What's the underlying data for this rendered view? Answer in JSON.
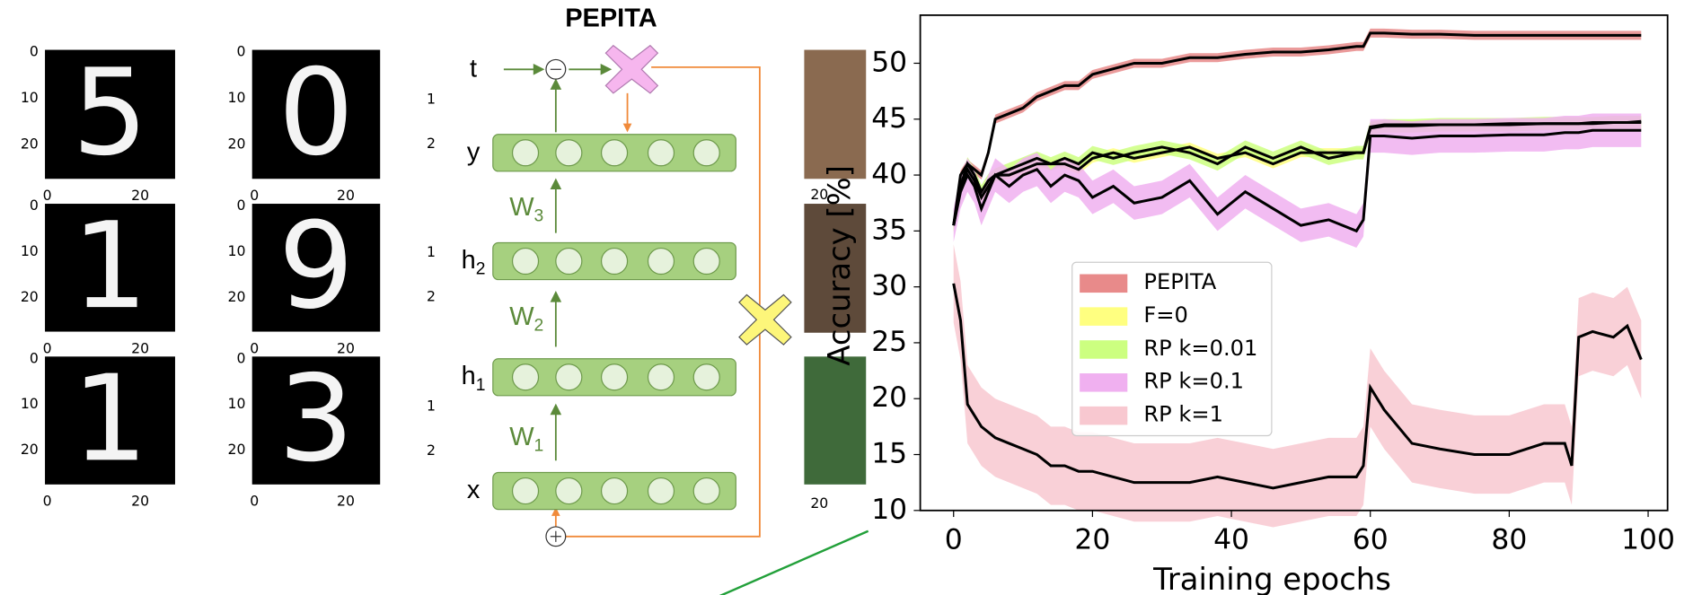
{
  "mnist": {
    "digits": [
      "5",
      "0",
      "1",
      "9",
      "1",
      "3"
    ],
    "yticks": [
      0,
      10,
      20
    ],
    "xticks": [
      0,
      20
    ]
  },
  "diagram": {
    "title": "PEPITA",
    "layers": [
      {
        "base": "t"
      },
      {
        "base": "y"
      },
      {
        "base": "h",
        "sub": "2"
      },
      {
        "base": "h",
        "sub": "1"
      },
      {
        "base": "x"
      }
    ],
    "weights": [
      {
        "base": "W",
        "sub": "3"
      },
      {
        "base": "W",
        "sub": "2"
      },
      {
        "base": "W",
        "sub": "1"
      }
    ]
  },
  "cifar": {
    "yticks": [
      1,
      2
    ],
    "xtick": 20
  },
  "chart_data": {
    "type": "line",
    "xlabel": "Training epochs",
    "ylabel": "Accuracy [%]",
    "xlim": [
      -4.8,
      102.8
    ],
    "ylim": [
      10,
      54.3
    ],
    "xticks": [
      0,
      20,
      40,
      60,
      80,
      100
    ],
    "yticks": [
      10,
      15,
      20,
      25,
      30,
      35,
      40,
      45,
      50
    ],
    "legend": "center",
    "line_color": "#000000",
    "x": [
      0,
      1,
      2,
      3,
      4,
      5,
      6,
      8,
      10,
      12,
      14,
      16,
      18,
      20,
      23,
      26,
      30,
      34,
      38,
      42,
      46,
      50,
      54,
      58,
      59,
      60,
      62,
      66,
      70,
      75,
      80,
      85,
      88,
      89,
      90,
      92,
      95,
      97,
      99
    ],
    "series": [
      {
        "name": "PEPITA",
        "color": "#e88a8a",
        "band": 0.4,
        "values": [
          35.5,
          40,
          41,
          40.5,
          40,
          42,
          45,
          45.5,
          46,
          47,
          47.5,
          48,
          48,
          49,
          49.5,
          50,
          50,
          50.5,
          50.5,
          50.8,
          51,
          51,
          51.2,
          51.5,
          51.5,
          52.7,
          52.7,
          52.6,
          52.6,
          52.5,
          52.5,
          52.5,
          52.5,
          52.5,
          52.5,
          52.5,
          52.5,
          52.5,
          52.5
        ]
      },
      {
        "name": "F=0",
        "color": "#ffff80",
        "band": 0.4,
        "values": [
          35.5,
          39,
          40.5,
          39.5,
          38,
          39,
          40,
          40,
          40.5,
          41,
          41,
          41,
          40.5,
          41.5,
          42,
          41.5,
          42,
          42.5,
          41.5,
          42,
          41,
          42,
          42,
          42,
          42,
          44.3,
          44.5,
          44.5,
          44.5,
          44.5,
          44.6,
          44.6,
          44.6,
          44.6,
          44.6,
          44.7,
          44.7,
          44.7,
          44.8
        ]
      },
      {
        "name": "RP k=0.01",
        "color": "#ccff80",
        "band": 0.6,
        "values": [
          35.5,
          39,
          41,
          40,
          38.5,
          39.5,
          40,
          40.5,
          41,
          41.5,
          41,
          41.5,
          41,
          42,
          41.5,
          42,
          42.5,
          42,
          41,
          42.5,
          41.5,
          42.5,
          41.5,
          42,
          42,
          44.2,
          44.4,
          44.4,
          44.5,
          44.5,
          44.5,
          44.6,
          44.6,
          44.6,
          44.6,
          44.6,
          44.7,
          44.7,
          44.7
        ]
      },
      {
        "name": "RP k=0.1",
        "color": "#f0b0f0",
        "band": 1.5,
        "values": [
          35.5,
          38.5,
          40,
          39,
          37,
          38.5,
          40,
          39,
          40,
          40.5,
          39,
          40,
          39.5,
          38,
          39,
          37.5,
          38,
          39.5,
          36.5,
          38.5,
          37,
          35.5,
          36,
          35,
          36,
          43.5,
          43.5,
          43.3,
          43.5,
          43.5,
          43.6,
          43.6,
          43.8,
          43.8,
          43.8,
          44,
          44,
          44,
          44
        ]
      },
      {
        "name": "RP k=1",
        "color": "#f8c8d0",
        "band": 3.5,
        "values": [
          30.3,
          27,
          19.5,
          18.5,
          17.5,
          17,
          16.5,
          16,
          15.5,
          15,
          14,
          14,
          13.5,
          13.5,
          13,
          12.5,
          12.5,
          12.5,
          13,
          12.5,
          12,
          12.5,
          13,
          13,
          14,
          21,
          19,
          16,
          15.5,
          15,
          15,
          16,
          16,
          14,
          25.5,
          26,
          25.5,
          26.5,
          23.5
        ]
      }
    ]
  }
}
